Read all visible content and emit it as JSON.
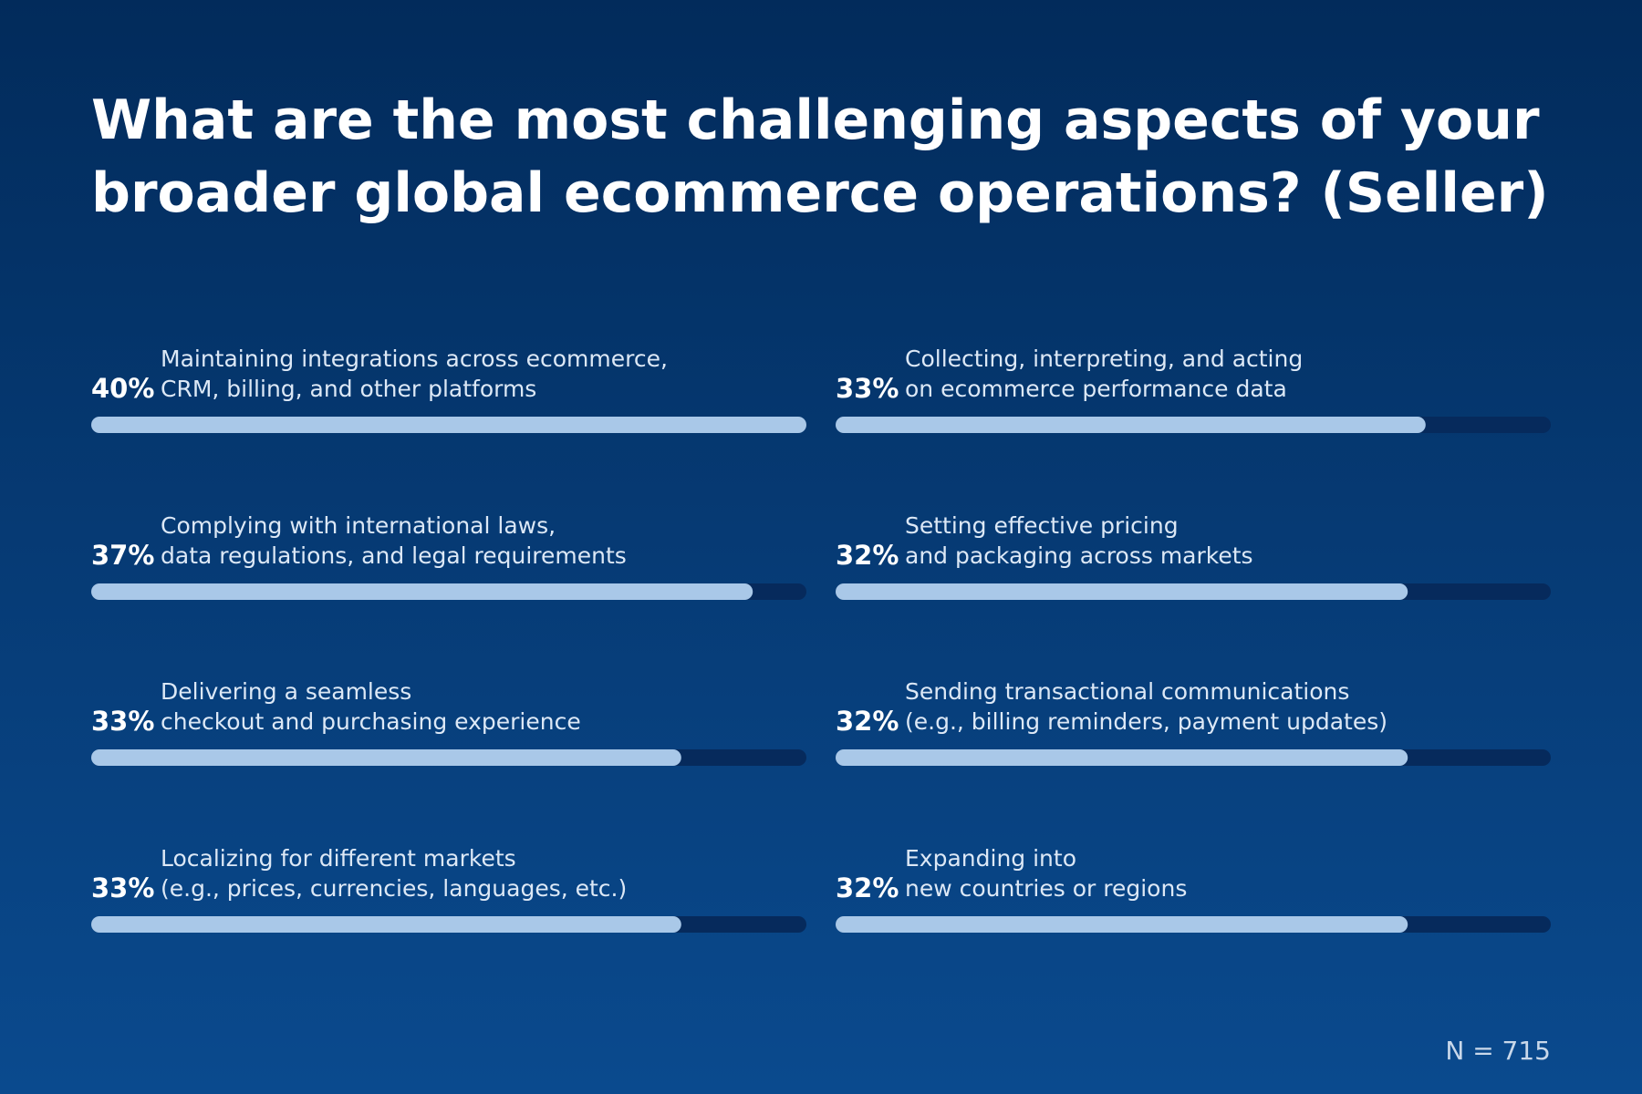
{
  "chart_data": {
    "type": "progress-bar",
    "title": [
      "What are the most challenging aspects of your",
      "broader global ecommerce operations? (Seller)"
    ],
    "categories": [
      [
        "Maintaining integrations across ecommerce,",
        "CRM, billing, and other platforms"
      ],
      [
        "Complying with international laws,",
        "data regulations, and legal requirements"
      ],
      [
        "Delivering a seamless",
        "checkout and purchasing experience"
      ],
      [
        "Localizing for different markets",
        "(e.g., prices, currencies, languages, etc.)"
      ],
      [
        "Collecting, interpreting, and acting",
        "on ecommerce performance data"
      ],
      [
        "Setting effective pricing",
        "and packaging across markets"
      ],
      [
        "Sending transactional communications",
        "(e.g., billing reminders, payment updates)"
      ],
      [
        "Expanding into",
        "new countries or regions"
      ]
    ],
    "values": [
      40,
      37,
      33,
      33,
      33,
      32,
      32,
      32
    ],
    "value_labels": [
      "40%",
      "37%",
      "33%",
      "33%",
      "33%",
      "32%",
      "32%",
      "32%"
    ],
    "xlim": [
      0,
      40
    ],
    "color": "#a9c8e8",
    "track_color": "#062a5c",
    "note": "N = 715"
  }
}
